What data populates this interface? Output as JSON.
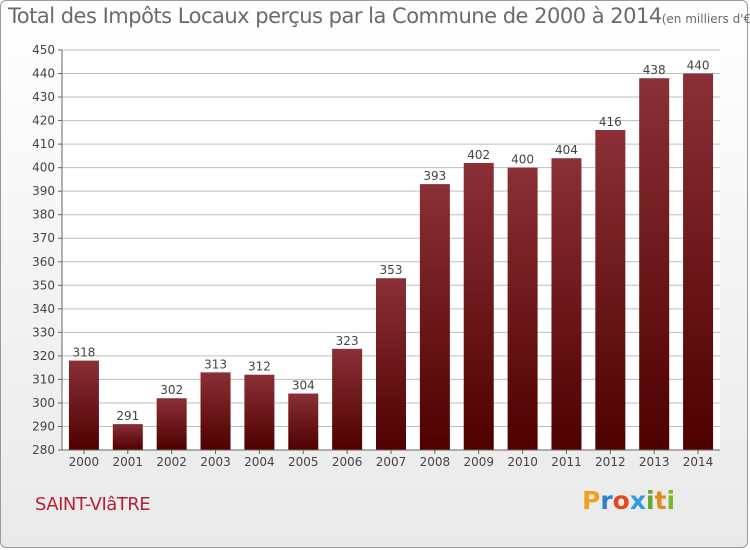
{
  "title": "Total des Impôts Locaux perçus par la Commune de 2000 à 2014",
  "unit_label": "(en milliers d'€)",
  "commune": "SAINT-VIâTRE",
  "logo": {
    "letters": [
      "P",
      "r",
      "o",
      "x",
      "i",
      "t",
      "i"
    ],
    "colors": [
      "#f0a020",
      "#3080d0",
      "#e04a20",
      "#2f9be0",
      "#5aaa2a",
      "#e08a20",
      "#7ab82a"
    ]
  },
  "chart_data": {
    "type": "bar",
    "categories": [
      "2000",
      "2001",
      "2002",
      "2003",
      "2004",
      "2005",
      "2006",
      "2007",
      "2008",
      "2009",
      "2010",
      "2011",
      "2012",
      "2013",
      "2014"
    ],
    "values": [
      318,
      291,
      302,
      313,
      312,
      304,
      323,
      353,
      393,
      402,
      400,
      404,
      416,
      438,
      440
    ],
    "ylim": [
      280,
      450
    ],
    "ytick_step": 10,
    "xlabel": "",
    "ylabel": "",
    "bar_color_top": "#8a3036",
    "bar_color_bottom": "#4e0000"
  }
}
